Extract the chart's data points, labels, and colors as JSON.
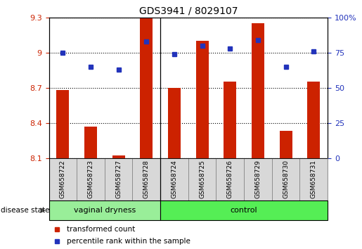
{
  "title": "GDS3941 / 8029107",
  "samples": [
    "GSM658722",
    "GSM658723",
    "GSM658727",
    "GSM658728",
    "GSM658724",
    "GSM658725",
    "GSM658726",
    "GSM658729",
    "GSM658730",
    "GSM658731"
  ],
  "red_values": [
    8.68,
    8.37,
    8.12,
    9.29,
    8.7,
    9.1,
    8.75,
    9.25,
    8.33,
    8.75
  ],
  "blue_values": [
    75,
    65,
    63,
    83,
    74,
    80,
    78,
    84,
    65,
    76
  ],
  "ylim_left": [
    8.1,
    9.3
  ],
  "ylim_right": [
    0,
    100
  ],
  "yticks_left": [
    8.1,
    8.4,
    8.7,
    9.0,
    9.3
  ],
  "yticks_right": [
    0,
    25,
    50,
    75,
    100
  ],
  "ytick_labels_left": [
    "8.1",
    "8.4",
    "8.7",
    "9",
    "9.3"
  ],
  "ytick_labels_right": [
    "0",
    "25",
    "50",
    "75",
    "100%"
  ],
  "group1_label": "vaginal dryness",
  "group2_label": "control",
  "group1_count": 4,
  "group2_count": 6,
  "disease_state_label": "disease state",
  "legend_red": "transformed count",
  "legend_blue": "percentile rank within the sample",
  "bar_color": "#cc2200",
  "dot_color": "#2233bb",
  "group1_bg": "#99ee99",
  "group2_bg": "#55ee55",
  "sample_box_bg": "#d8d8d8",
  "bar_width": 0.45,
  "grid_color": "black",
  "grid_linestyle": "dotted",
  "ytick_color_left": "#cc2200",
  "ytick_color_right": "#2233bb",
  "sep_line_color": "black"
}
